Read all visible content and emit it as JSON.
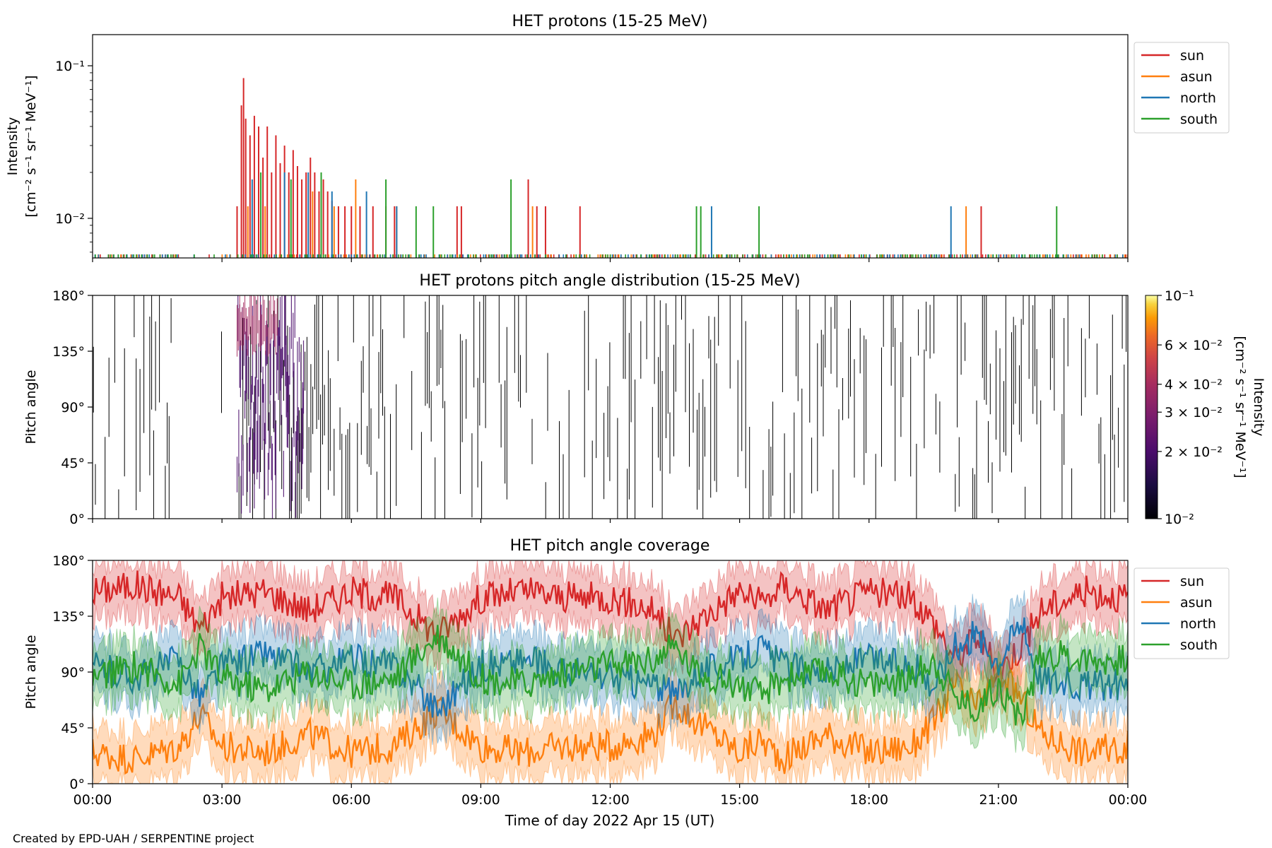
{
  "figure": {
    "footer": "Created by EPD-UAH / SERPENTINE project",
    "xlabel": "Time of day 2022 Apr 15 (UT)",
    "xticks": [
      "00:00",
      "03:00",
      "06:00",
      "09:00",
      "12:00",
      "15:00",
      "18:00",
      "21:00",
      "00:00"
    ]
  },
  "chart_data": [
    {
      "type": "line",
      "title": "HET protons (15-25 MeV)",
      "ylabel": "Intensity",
      "ylabel_units": "[cm⁻² s⁻¹ sr⁻¹ MeV⁻¹]",
      "yscale": "log",
      "ylim": [
        0.0055,
        0.16
      ],
      "yticks": [
        {
          "value": 0.01,
          "label": "10⁻²"
        },
        {
          "value": 0.1,
          "label": "10⁻¹"
        }
      ],
      "xlim_hours": [
        0,
        24
      ],
      "legend_position": "outside-right",
      "baseline": 0.0058,
      "series": [
        {
          "name": "sun",
          "color": "#d62728",
          "spikes": [
            [
              3.35,
              0.012
            ],
            [
              3.45,
              0.055
            ],
            [
              3.5,
              0.083
            ],
            [
              3.55,
              0.045
            ],
            [
              3.65,
              0.035
            ],
            [
              3.75,
              0.047
            ],
            [
              3.85,
              0.04
            ],
            [
              3.95,
              0.025
            ],
            [
              4.05,
              0.04
            ],
            [
              4.15,
              0.02
            ],
            [
              4.25,
              0.035
            ],
            [
              4.35,
              0.023
            ],
            [
              4.45,
              0.03
            ],
            [
              4.55,
              0.02
            ],
            [
              4.65,
              0.028
            ],
            [
              4.75,
              0.022
            ],
            [
              4.85,
              0.018
            ],
            [
              4.95,
              0.02
            ],
            [
              5.05,
              0.025
            ],
            [
              5.15,
              0.02
            ],
            [
              5.25,
              0.015
            ],
            [
              5.35,
              0.018
            ],
            [
              5.45,
              0.015
            ],
            [
              5.55,
              0.013
            ],
            [
              5.7,
              0.012
            ],
            [
              5.85,
              0.012
            ],
            [
              6.0,
              0.012
            ],
            [
              6.2,
              0.012
            ],
            [
              6.5,
              0.012
            ],
            [
              6.8,
              0.012
            ],
            [
              7.0,
              0.012
            ],
            [
              8.45,
              0.012
            ],
            [
              8.55,
              0.012
            ],
            [
              10.1,
              0.018
            ],
            [
              10.3,
              0.012
            ],
            [
              10.5,
              0.012
            ],
            [
              11.3,
              0.012
            ],
            [
              20.6,
              0.012
            ]
          ]
        },
        {
          "name": "asun",
          "color": "#ff7f0e",
          "spikes": [
            [
              3.6,
              0.012
            ],
            [
              4.0,
              0.012
            ],
            [
              5.1,
              0.015
            ],
            [
              5.6,
              0.012
            ],
            [
              6.1,
              0.018
            ],
            [
              7.05,
              0.012
            ],
            [
              10.2,
              0.012
            ],
            [
              20.25,
              0.012
            ]
          ]
        },
        {
          "name": "north",
          "color": "#1f77b4",
          "spikes": [
            [
              3.7,
              0.018
            ],
            [
              4.45,
              0.02
            ],
            [
              5.0,
              0.02
            ],
            [
              5.55,
              0.015
            ],
            [
              6.35,
              0.015
            ],
            [
              7.05,
              0.012
            ],
            [
              14.35,
              0.012
            ],
            [
              19.9,
              0.012
            ]
          ]
        },
        {
          "name": "south",
          "color": "#2ca02c",
          "spikes": [
            [
              3.9,
              0.02
            ],
            [
              4.6,
              0.018
            ],
            [
              5.3,
              0.02
            ],
            [
              6.8,
              0.018
            ],
            [
              7.5,
              0.012
            ],
            [
              7.9,
              0.012
            ],
            [
              9.7,
              0.018
            ],
            [
              14.0,
              0.012
            ],
            [
              14.1,
              0.012
            ],
            [
              15.45,
              0.012
            ],
            [
              22.35,
              0.012
            ]
          ]
        }
      ]
    },
    {
      "type": "heatmap",
      "title": "HET protons pitch angle distribution (15-25 MeV)",
      "ylabel": "Pitch angle",
      "ylim": [
        0,
        180
      ],
      "yticks": [
        "0°",
        "45°",
        "90°",
        "135°",
        "180°"
      ],
      "xlim_hours": [
        0,
        24
      ],
      "colorbar": {
        "label": "Intensity",
        "label_units": "[cm⁻² s⁻¹ sr⁻¹ MeV⁻¹]",
        "scale": "log",
        "range": [
          0.01,
          0.1
        ],
        "colormap": "inferno",
        "ticks": [
          {
            "value": 0.01,
            "label": "10⁻²"
          },
          {
            "value": 0.02,
            "label": "2 × 10⁻²"
          },
          {
            "value": 0.03,
            "label": "3 × 10⁻²"
          },
          {
            "value": 0.04,
            "label": "4 × 10⁻²"
          },
          {
            "value": 0.06,
            "label": "6 × 10⁻²"
          },
          {
            "value": 0.1,
            "label": "10⁻¹"
          }
        ]
      }
    },
    {
      "type": "line",
      "title": "HET pitch angle coverage",
      "ylabel": "Pitch angle",
      "ylim": [
        0,
        180
      ],
      "yticks": [
        "0°",
        "45°",
        "90°",
        "135°",
        "180°"
      ],
      "xlim_hours": [
        0,
        24
      ],
      "legend_position": "outside-right",
      "band_halfwidth_deg": 22,
      "series": [
        {
          "name": "sun",
          "color": "#d62728",
          "x": [
            0,
            1,
            2,
            2.5,
            3,
            4,
            5,
            6,
            7,
            8,
            9,
            10,
            11,
            12,
            13,
            13.5,
            14,
            15,
            15.5,
            16,
            17,
            18,
            19,
            19.5,
            20,
            20.5,
            21,
            21.5,
            22,
            23,
            24
          ],
          "y": [
            155,
            160,
            150,
            125,
            150,
            155,
            140,
            155,
            150,
            120,
            150,
            155,
            150,
            150,
            140,
            115,
            130,
            155,
            145,
            160,
            140,
            155,
            150,
            130,
            100,
            120,
            90,
            110,
            140,
            155,
            150
          ]
        },
        {
          "name": "asun",
          "color": "#ff7f0e",
          "x": [
            0,
            1,
            2,
            2.5,
            3,
            4,
            5,
            6,
            7,
            8,
            9,
            10,
            11,
            12,
            13,
            13.5,
            14,
            15,
            15.5,
            16,
            17,
            18,
            19,
            19.5,
            20,
            20.5,
            21,
            21.5,
            22,
            23,
            24
          ],
          "y": [
            25,
            20,
            30,
            55,
            30,
            25,
            40,
            25,
            30,
            60,
            30,
            25,
            30,
            30,
            40,
            65,
            50,
            25,
            35,
            20,
            40,
            25,
            30,
            50,
            80,
            60,
            90,
            70,
            40,
            25,
            30
          ]
        },
        {
          "name": "north",
          "color": "#1f77b4",
          "x": [
            0,
            1,
            2,
            2.5,
            3,
            4,
            5,
            6,
            7,
            8,
            9,
            10,
            11,
            12,
            13,
            13.5,
            14,
            15,
            15.5,
            16,
            17,
            18,
            19,
            19.5,
            20,
            20.5,
            21,
            21.5,
            22,
            23,
            24
          ],
          "y": [
            95,
            85,
            100,
            70,
            95,
            105,
            90,
            100,
            95,
            60,
            95,
            100,
            90,
            85,
            80,
            70,
            90,
            100,
            110,
            95,
            90,
            100,
            95,
            80,
            110,
            120,
            100,
            130,
            85,
            80,
            80
          ]
        },
        {
          "name": "south",
          "color": "#2ca02c",
          "x": [
            0,
            1,
            2,
            2.5,
            3,
            4,
            5,
            6,
            7,
            8,
            9,
            10,
            11,
            12,
            13,
            13.5,
            14,
            15,
            15.5,
            16,
            17,
            18,
            19,
            19.5,
            20,
            20.5,
            21,
            21.5,
            22,
            23,
            24
          ],
          "y": [
            85,
            95,
            80,
            110,
            85,
            75,
            90,
            80,
            85,
            120,
            85,
            80,
            90,
            95,
            100,
            110,
            90,
            80,
            70,
            85,
            90,
            80,
            85,
            100,
            70,
            60,
            80,
            50,
            105,
            100,
            100
          ]
        }
      ]
    }
  ]
}
